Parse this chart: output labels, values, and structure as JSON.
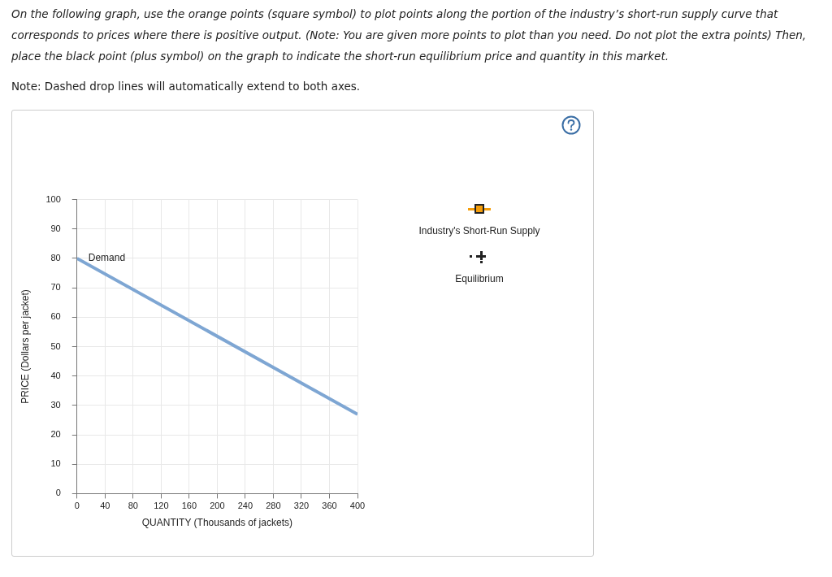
{
  "chart_data": {
    "type": "line",
    "title": "On the following graph, use the orange points (square symbol) to plot points along the portion of the industry’s short-run supply curve that corresponds to prices where there is positive output. (Note: You are given more points to plot than you need. Do not plot the extra points) Then, place the black point (plus symbol) on the graph to indicate the short-run equilibrium price and quantity in this market.",
    "annotations": [
      "Note: Dashed drop lines will automatically extend to both axes."
    ],
    "xlabel": "QUANTITY (Thousands of jackets)",
    "ylabel": "PRICE (Dollars per jacket)",
    "xlim": [
      0,
      400
    ],
    "xticks": [
      0,
      40,
      80,
      120,
      160,
      200,
      240,
      280,
      320,
      360,
      400
    ],
    "ylim": [
      0,
      100
    ],
    "yticks": [
      0,
      10,
      20,
      30,
      40,
      50,
      60,
      70,
      80,
      90,
      100
    ],
    "grid": true,
    "legend": "right",
    "series": [
      {
        "name": "Demand",
        "color": "#7ea6d3",
        "x": [
          0,
          400
        ],
        "values": [
          80,
          27
        ],
        "marker": "none"
      },
      {
        "name": "Industry's Short-Run Supply",
        "type": "scatter",
        "color": "#f59e0b",
        "marker": "square"
      },
      {
        "name": "Equilibrium",
        "type": "scatter",
        "color": "#222222",
        "marker": "cross"
      }
    ]
  }
}
